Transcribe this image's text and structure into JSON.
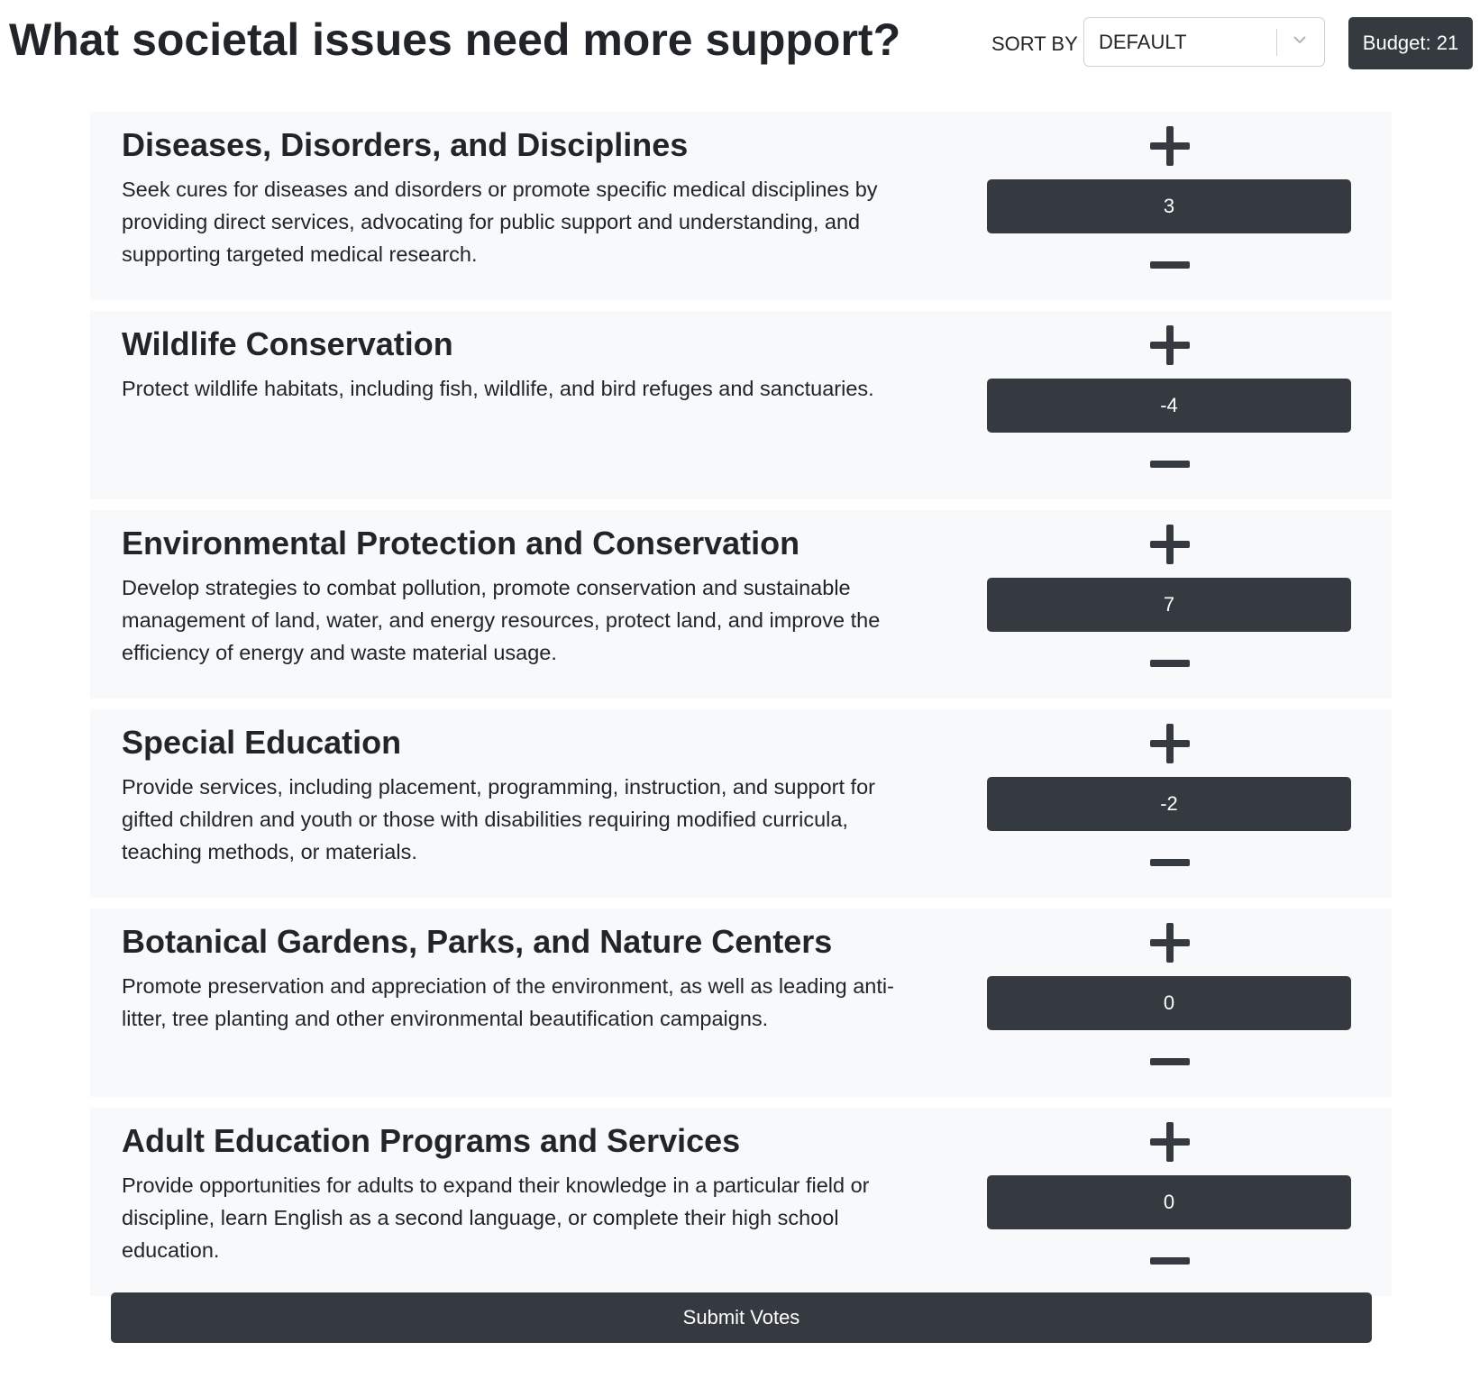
{
  "header": {
    "title": "What societal issues need more support?",
    "sort_label": "SORT BY",
    "sort_value": "DEFAULT",
    "sort_icon": "chevron-down-icon",
    "budget_label": "Budget: 21"
  },
  "issues": [
    {
      "title": "Diseases, Disorders, and Disciplines",
      "description": "Seek cures for diseases and disorders or promote specific medical disciplines by providing direct services, advocating for public support and understanding, and supporting targeted medical research.",
      "votes": "3"
    },
    {
      "title": "Wildlife Conservation",
      "description": "Protect wildlife habitats, including fish, wildlife, and bird refuges and sanctuaries.",
      "votes": "-4"
    },
    {
      "title": "Environmental Protection and Conservation",
      "description": "Develop strategies to combat pollution, promote conservation and sustainable management of land, water, and energy resources, protect land, and improve the efficiency of energy and waste material usage.",
      "votes": "7"
    },
    {
      "title": "Special Education",
      "description": "Provide services, including placement, programming, instruction, and support for gifted children and youth or those with disabilities requiring modified curricula, teaching methods, or materials.",
      "votes": "-2"
    },
    {
      "title": "Botanical Gardens, Parks, and Nature Centers",
      "description": "Promote preservation and appreciation of the environment, as well as leading anti-litter, tree planting and other environmental beautification campaigns.",
      "votes": "0"
    },
    {
      "title": "Adult Education Programs and Services",
      "description": "Provide opportunities for adults to expand their knowledge in a particular field or discipline, learn English as a second language, or complete their high school education.",
      "votes": "0"
    }
  ],
  "controls": {
    "increase_icon": "plus-icon",
    "decrease_icon": "minus-icon"
  },
  "submit_label": "Submit Votes",
  "colors": {
    "dark": "#343a40",
    "card_bg": "#f8f9fa",
    "text": "#212529"
  }
}
